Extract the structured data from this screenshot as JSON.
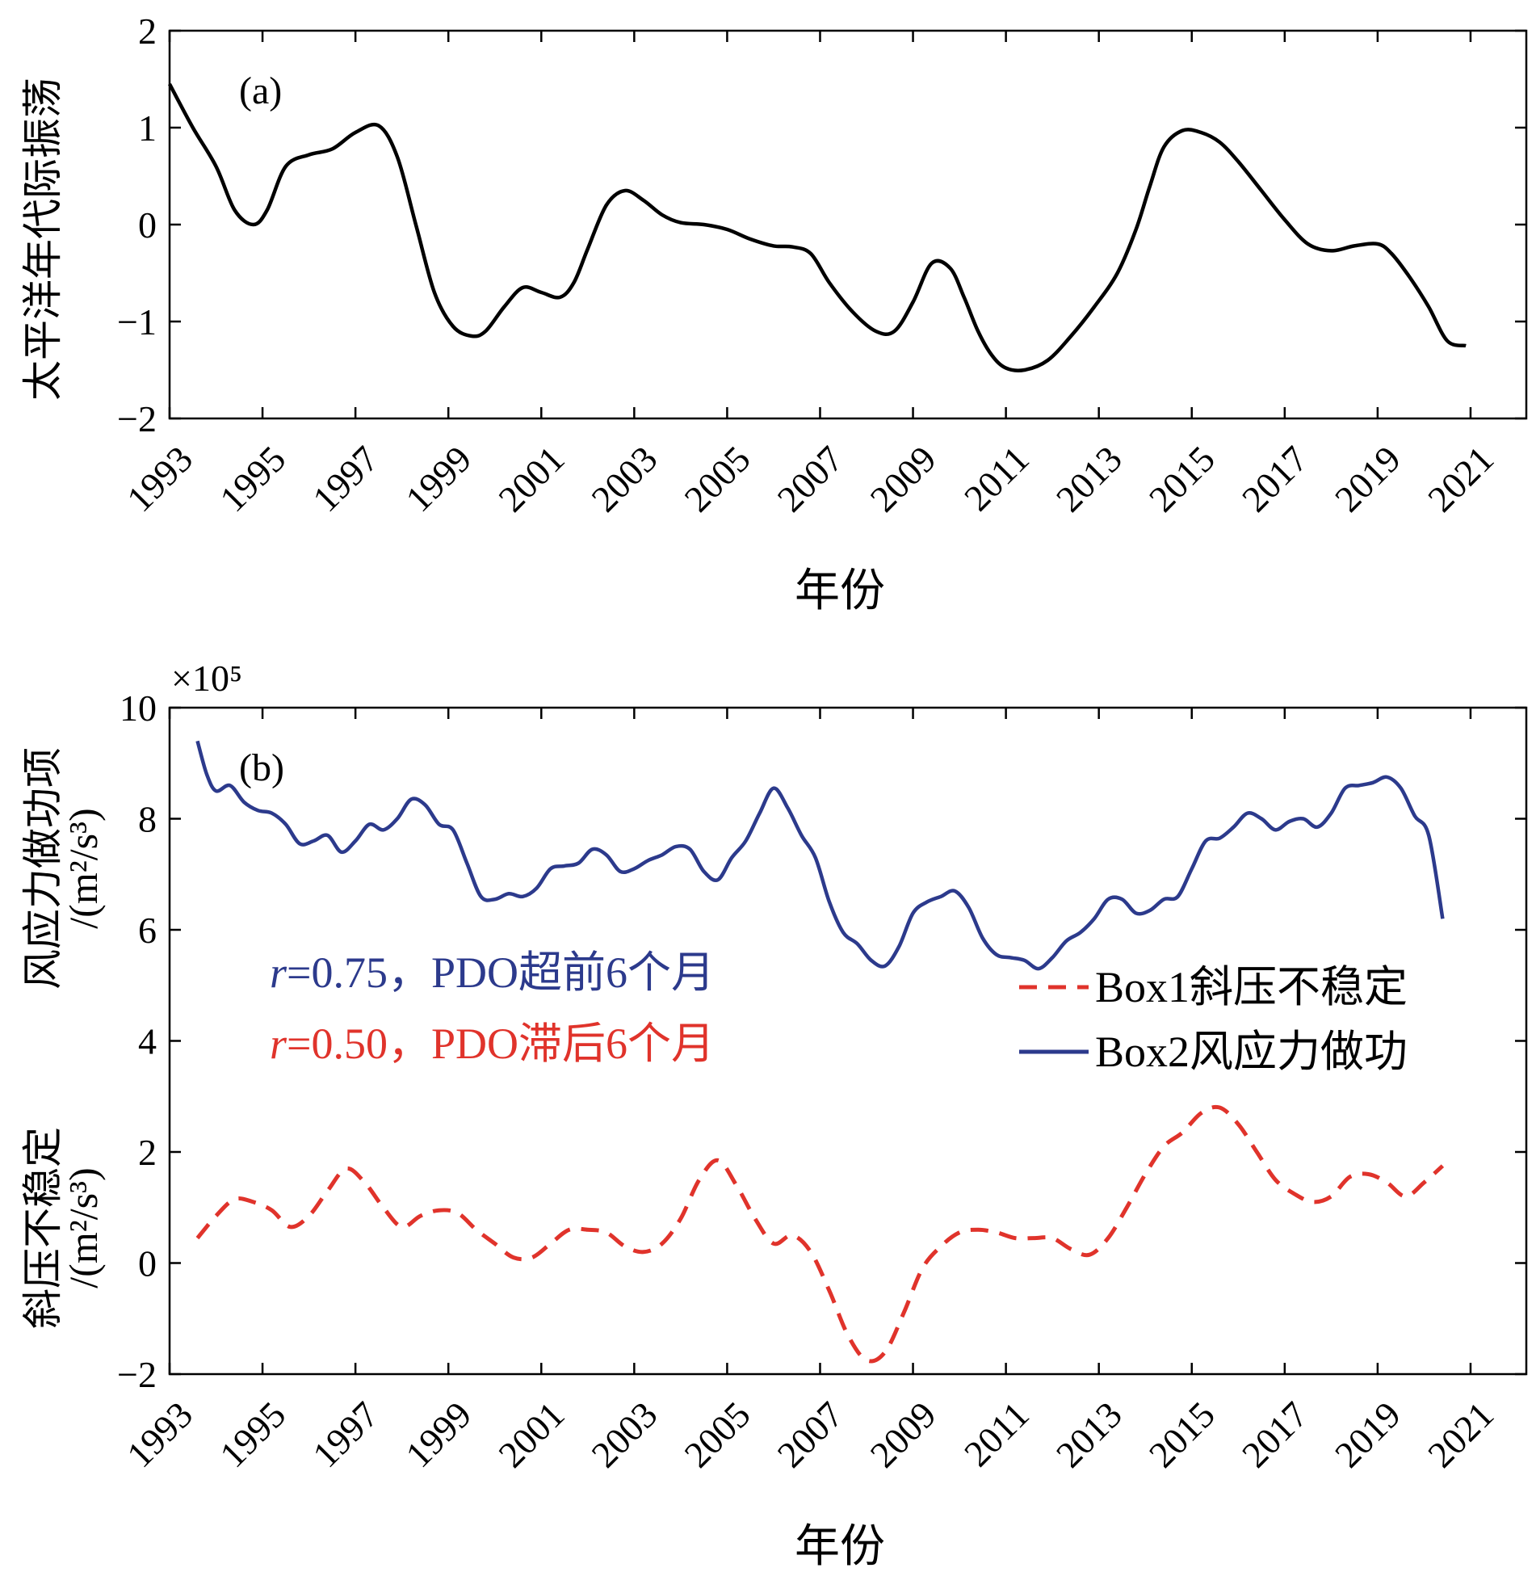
{
  "chart_data": [
    {
      "type": "line",
      "panel_label": "(a)",
      "ylabel": "太平洋年代际振荡",
      "xlabel": "年份",
      "xlim": [
        1993,
        2022.2
      ],
      "ylim": [
        -2,
        2
      ],
      "xticks": [
        "1993",
        "1995",
        "1997",
        "1999",
        "2001",
        "2003",
        "2005",
        "2007",
        "2009",
        "2011",
        "2013",
        "2015",
        "2017",
        "2019",
        "2021"
      ],
      "yticks": [
        "2",
        "1",
        "0",
        "−1",
        "−2"
      ],
      "ytick_values": [
        2,
        1,
        0,
        -1,
        -2
      ],
      "series": [
        {
          "color": "#000000",
          "x": [
            1993.0,
            1993.5,
            1994.0,
            1994.4,
            1994.8,
            1995.1,
            1995.5,
            1996.0,
            1996.5,
            1997.0,
            1997.5,
            1997.9,
            1998.3,
            1998.7,
            1999.1,
            1999.5,
            1999.8,
            2000.2,
            2000.6,
            2001.0,
            2001.4,
            2001.7,
            2002.0,
            2002.4,
            2002.8,
            2003.2,
            2003.6,
            2004.0,
            2004.5,
            2005.0,
            2005.5,
            2006.0,
            2006.4,
            2006.8,
            2007.2,
            2007.7,
            2008.2,
            2008.6,
            2009.0,
            2009.4,
            2009.8,
            2010.1,
            2010.4,
            2010.7,
            2011.0,
            2011.4,
            2011.9,
            2012.4,
            2012.9,
            2013.4,
            2013.8,
            2014.1,
            2014.4,
            2014.8,
            2015.2,
            2015.6,
            2016.0,
            2016.5,
            2017.0,
            2017.5,
            2018.0,
            2018.5,
            2019.0,
            2019.3,
            2019.7,
            2020.1,
            2020.5,
            2020.9
          ],
          "values": [
            1.45,
            1.0,
            0.6,
            0.15,
            0.0,
            0.15,
            0.6,
            0.72,
            0.78,
            0.95,
            1.02,
            0.7,
            0.0,
            -0.7,
            -1.05,
            -1.15,
            -1.1,
            -0.85,
            -0.65,
            -0.7,
            -0.75,
            -0.6,
            -0.25,
            0.2,
            0.35,
            0.25,
            0.1,
            0.02,
            0.0,
            -0.05,
            -0.15,
            -0.22,
            -0.23,
            -0.3,
            -0.6,
            -0.9,
            -1.1,
            -1.1,
            -0.8,
            -0.4,
            -0.45,
            -0.75,
            -1.1,
            -1.35,
            -1.48,
            -1.5,
            -1.4,
            -1.15,
            -0.85,
            -0.5,
            -0.05,
            0.4,
            0.8,
            0.97,
            0.95,
            0.85,
            0.65,
            0.35,
            0.05,
            -0.2,
            -0.27,
            -0.22,
            -0.2,
            -0.3,
            -0.55,
            -0.85,
            -1.2,
            -1.25
          ]
        }
      ]
    },
    {
      "type": "line",
      "panel_label": "(b)",
      "ylabel": "风应力做功项",
      "ylabel2": "/(m²/s³)",
      "ylabel_lower": "斜压不稳定",
      "ylabel_lower2": "/(m²/s³)",
      "xlabel": "年份",
      "exponent": "×10⁵",
      "xlim": [
        1993,
        2022.2
      ],
      "ylim": [
        -2,
        10
      ],
      "xticks": [
        "1993",
        "1995",
        "1997",
        "1999",
        "2001",
        "2003",
        "2005",
        "2007",
        "2009",
        "2011",
        "2013",
        "2015",
        "2017",
        "2019",
        "2021"
      ],
      "yticks": [
        "10",
        "8",
        "6",
        "4",
        "2",
        "0",
        "−2"
      ],
      "ytick_values": [
        10,
        8,
        6,
        4,
        2,
        0,
        -2
      ],
      "legend_position": "right",
      "annotations": [
        {
          "r": "r",
          "text": "=0.75，PDO超前6个月",
          "color": "#2c3a8c"
        },
        {
          "r": "r",
          "text": "=0.50，PDO滞后6个月",
          "color": "#e0332b"
        }
      ],
      "series": [
        {
          "name": "Box1斜压不稳定",
          "style": "dashed",
          "color": "#e0332b",
          "x": [
            1993.6,
            1994.0,
            1994.4,
            1994.8,
            1995.2,
            1995.6,
            1996.0,
            1996.4,
            1996.8,
            1997.2,
            1997.6,
            1998.0,
            1998.4,
            1998.8,
            1999.2,
            1999.6,
            2000.0,
            2000.4,
            2000.8,
            2001.2,
            2001.6,
            2002.0,
            2002.4,
            2002.8,
            2003.2,
            2003.6,
            2004.0,
            2004.4,
            2004.8,
            2005.2,
            2005.6,
            2006.0,
            2006.4,
            2006.8,
            2007.2,
            2007.6,
            2008.0,
            2008.4,
            2008.8,
            2009.2,
            2009.6,
            2010.0,
            2010.4,
            2010.8,
            2011.2,
            2011.6,
            2012.0,
            2012.4,
            2012.8,
            2013.2,
            2013.6,
            2014.0,
            2014.4,
            2014.8,
            2015.2,
            2015.6,
            2016.0,
            2016.4,
            2016.8,
            2017.2,
            2017.6,
            2018.0,
            2018.4,
            2018.8,
            2019.2,
            2019.6,
            2020.0,
            2020.4
          ],
          "values": [
            0.45,
            0.85,
            1.15,
            1.1,
            0.95,
            0.65,
            0.85,
            1.3,
            1.7,
            1.45,
            1.0,
            0.65,
            0.85,
            0.95,
            0.9,
            0.6,
            0.35,
            0.1,
            0.1,
            0.35,
            0.6,
            0.6,
            0.55,
            0.3,
            0.2,
            0.35,
            0.8,
            1.5,
            1.85,
            1.4,
            0.8,
            0.35,
            0.5,
            0.2,
            -0.5,
            -1.3,
            -1.75,
            -1.6,
            -0.9,
            -0.1,
            0.3,
            0.55,
            0.6,
            0.55,
            0.45,
            0.45,
            0.45,
            0.25,
            0.15,
            0.45,
            1.0,
            1.6,
            2.1,
            2.35,
            2.7,
            2.8,
            2.5,
            2.0,
            1.5,
            1.25,
            1.1,
            1.2,
            1.55,
            1.6,
            1.45,
            1.2,
            1.45,
            1.75
          ]
        },
        {
          "name": "Box2风应力做功",
          "style": "solid",
          "color": "#2c3a8c",
          "x": [
            1993.6,
            1993.8,
            1994.0,
            1994.3,
            1994.6,
            1994.9,
            1995.2,
            1995.5,
            1995.8,
            1996.1,
            1996.4,
            1996.7,
            1997.0,
            1997.3,
            1997.6,
            1997.9,
            1998.2,
            1998.5,
            1998.8,
            1999.1,
            1999.4,
            1999.7,
            2000.0,
            2000.3,
            2000.6,
            2000.9,
            2001.2,
            2001.5,
            2001.8,
            2002.1,
            2002.4,
            2002.7,
            2003.0,
            2003.3,
            2003.6,
            2003.9,
            2004.2,
            2004.5,
            2004.8,
            2005.1,
            2005.4,
            2005.7,
            2006.0,
            2006.3,
            2006.6,
            2006.9,
            2007.2,
            2007.5,
            2007.8,
            2008.1,
            2008.4,
            2008.7,
            2009.0,
            2009.3,
            2009.6,
            2009.9,
            2010.2,
            2010.5,
            2010.8,
            2011.1,
            2011.4,
            2011.7,
            2012.0,
            2012.3,
            2012.6,
            2012.9,
            2013.2,
            2013.5,
            2013.8,
            2014.1,
            2014.4,
            2014.7,
            2015.0,
            2015.3,
            2015.6,
            2015.9,
            2016.2,
            2016.5,
            2016.8,
            2017.1,
            2017.4,
            2017.7,
            2018.0,
            2018.3,
            2018.6,
            2018.9,
            2019.2,
            2019.5,
            2019.8,
            2020.1,
            2020.4
          ],
          "values": [
            9.4,
            8.8,
            8.5,
            8.6,
            8.3,
            8.15,
            8.1,
            7.9,
            7.55,
            7.6,
            7.7,
            7.4,
            7.6,
            7.9,
            7.8,
            8.0,
            8.35,
            8.25,
            7.9,
            7.8,
            7.2,
            6.6,
            6.55,
            6.65,
            6.6,
            6.75,
            7.1,
            7.15,
            7.2,
            7.45,
            7.35,
            7.05,
            7.1,
            7.25,
            7.35,
            7.5,
            7.45,
            7.05,
            6.9,
            7.3,
            7.6,
            8.1,
            8.55,
            8.2,
            7.7,
            7.3,
            6.5,
            5.95,
            5.75,
            5.45,
            5.35,
            5.7,
            6.3,
            6.5,
            6.6,
            6.7,
            6.4,
            5.85,
            5.55,
            5.5,
            5.45,
            5.3,
            5.5,
            5.8,
            5.95,
            6.2,
            6.55,
            6.55,
            6.3,
            6.35,
            6.55,
            6.6,
            7.1,
            7.6,
            7.65,
            7.85,
            8.1,
            8.0,
            7.8,
            7.95,
            8.0,
            7.85,
            8.1,
            8.55,
            8.6,
            8.65,
            8.75,
            8.55,
            8.05,
            7.7,
            6.2
          ]
        }
      ]
    }
  ]
}
